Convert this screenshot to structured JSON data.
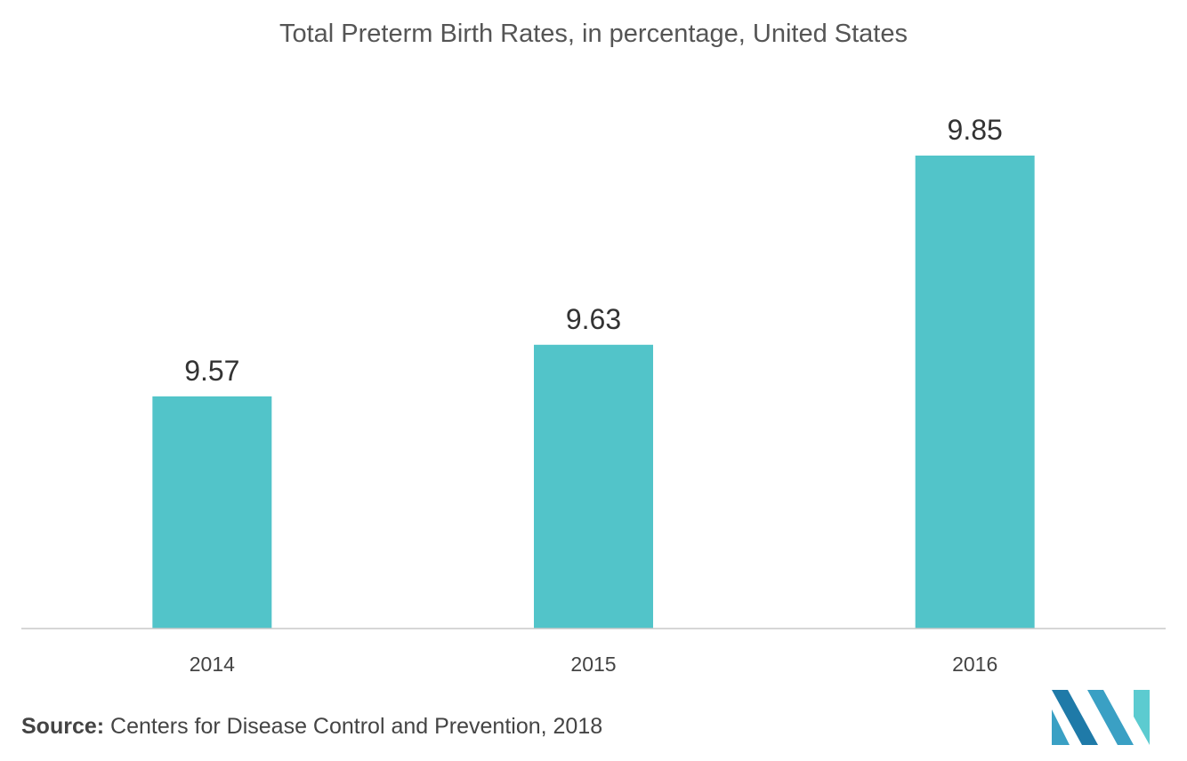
{
  "chart_data": {
    "type": "bar",
    "title": "Total Preterm Birth Rates, in percentage, United States",
    "categories": [
      "2014",
      "2015",
      "2016"
    ],
    "values": [
      9.57,
      9.63,
      9.85
    ],
    "data_labels": [
      "9.57",
      "9.63",
      "9.85"
    ],
    "xlabel": "",
    "ylabel": "",
    "grid": false,
    "legend": "none",
    "bar_color": "#52c4c9",
    "axis_color": "#c8c8c8"
  },
  "source": {
    "label": "Source:",
    "text": "Centers for Disease Control and Prevention, 2018"
  },
  "logo": {
    "icon": "mordor-logo-icon",
    "colors": [
      "#1f7aa8",
      "#3aa0c4",
      "#5ccbd0"
    ]
  }
}
